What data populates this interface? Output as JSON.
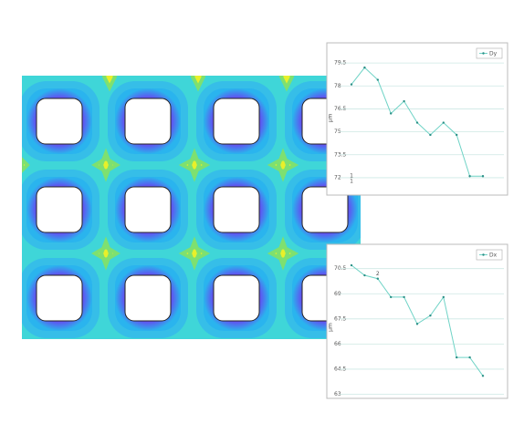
{
  "chart_data": [
    {
      "type": "line",
      "y_label": "μm",
      "annotation": "1",
      "categories": [
        "1",
        null,
        null,
        null,
        null,
        null,
        null,
        null,
        null,
        null,
        null
      ],
      "series": [
        {
          "name": "Dy",
          "color": "#6fd3c6",
          "values": [
            78.1,
            79.2,
            78.4,
            76.2,
            77.0,
            75.6,
            74.8,
            75.6,
            74.8,
            72.1,
            72.1
          ]
        }
      ],
      "ylim": [
        71.4,
        80.4
      ],
      "yticks": [
        72,
        73.5,
        75,
        76.5,
        78,
        79.5
      ],
      "grid": true,
      "legend": "top-right"
    },
    {
      "type": "line",
      "y_label": "μm",
      "annotation": "2",
      "categories": [
        null,
        null,
        null,
        null,
        null,
        null,
        null,
        null,
        null,
        null,
        null
      ],
      "series": [
        {
          "name": "Dx",
          "color": "#6fd3c6",
          "values": [
            70.7,
            70.1,
            69.9,
            68.8,
            68.8,
            67.2,
            67.7,
            68.8,
            65.2,
            65.2,
            64.1
          ]
        }
      ],
      "ylim": [
        62.7,
        71.3
      ],
      "yticks": [
        63,
        64.5,
        66,
        67.5,
        69,
        70.5
      ],
      "grid": true,
      "legend": "top-right"
    }
  ]
}
